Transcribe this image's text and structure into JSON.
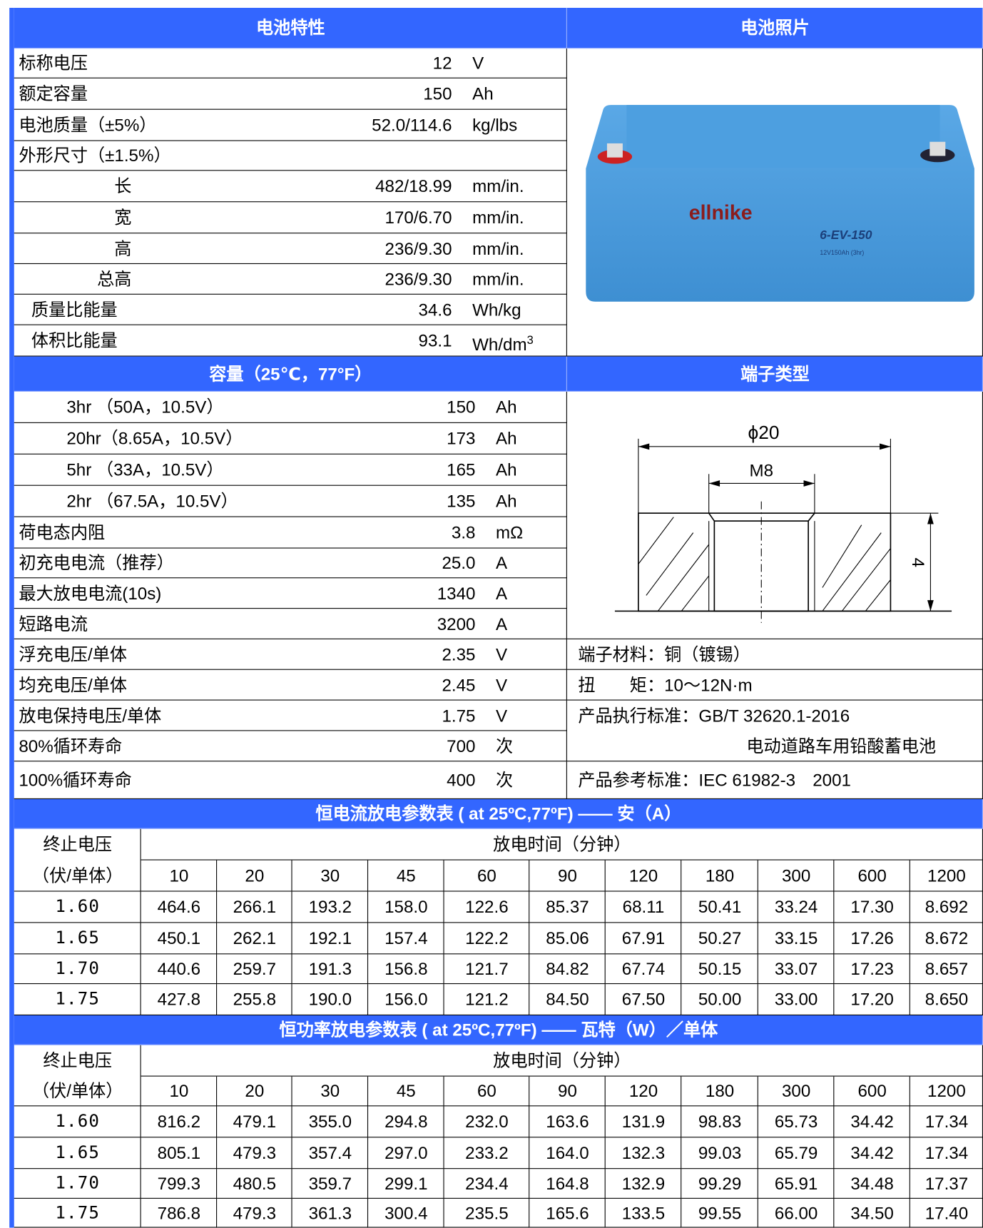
{
  "spec": {
    "title": "电池特性",
    "rows": [
      {
        "label": "标称电压",
        "value": "12",
        "unit": "V"
      },
      {
        "label": "额定容量",
        "value": "150",
        "unit": "Ah"
      },
      {
        "label": "电池质量（±5%）",
        "value": "52.0/114.6",
        "unit": "kg/lbs"
      },
      {
        "label": "外形尺寸（±1.5%）"
      },
      {
        "label": "长",
        "value": "482/18.99",
        "unit": "mm/in."
      },
      {
        "label": "宽",
        "value": "170/6.70",
        "unit": "mm/in."
      },
      {
        "label": "高",
        "value": "236/9.30",
        "unit": "mm/in."
      },
      {
        "label": "总高",
        "value": "236/9.30",
        "unit": "mm/in."
      },
      {
        "label": "质量比能量",
        "value": "34.6",
        "unit": "Wh/kg"
      },
      {
        "label": "体积比能量",
        "value": "93.1",
        "unit": "Wh/dm",
        "unit_sup": "3"
      }
    ]
  },
  "photo": {
    "title": "电池照片",
    "brand": "ellnike",
    "model": "6-EV-150",
    "rating": "12V150Ah (3hr)"
  },
  "capacity": {
    "title": "容量（25℃，77°F）",
    "rows": [
      {
        "label": "3hr （50A，10.5V）",
        "value": "150",
        "unit": "Ah"
      },
      {
        "label": "20hr（8.65A，10.5V）",
        "value": "173",
        "unit": "Ah"
      },
      {
        "label": "5hr （33A，10.5V）",
        "value": "165",
        "unit": "Ah"
      },
      {
        "label": "2hr （67.5A，10.5V）",
        "value": "135",
        "unit": "Ah"
      },
      {
        "label": "荷电态内阻",
        "value": "3.8",
        "unit": "mΩ"
      },
      {
        "label": "初充电电流（推荐）",
        "value": "25.0",
        "unit": "A"
      },
      {
        "label": "最大放电电流(10s)",
        "value": "1340",
        "unit": "A"
      },
      {
        "label": "短路电流",
        "value": "3200",
        "unit": "A"
      },
      {
        "label": "浮充电压/单体",
        "value": "2.35",
        "unit": "V"
      },
      {
        "label": "均充电压/单体",
        "value": "2.45",
        "unit": "V"
      },
      {
        "label": "放电保持电压/单体",
        "value": "1.75",
        "unit": "V"
      },
      {
        "label": "80%循环寿命",
        "value": "700",
        "unit": "次"
      },
      {
        "label": "100%循环寿命",
        "value": "400",
        "unit": "次"
      }
    ]
  },
  "terminal": {
    "title": "端子类型",
    "diagram": {
      "outer": "ϕ20",
      "thread": "M8",
      "height": "4"
    },
    "details": [
      "端子材料：铜（镀锡）",
      "扭　　矩：10～12N·m",
      "产品执行标准：GB/T 32620.1-2016",
      "电动道路车用铅酸蓄电池",
      "产品参考标准：IEC 61982-3　2001"
    ]
  },
  "current_table": {
    "title": "恒电流放电参数表 ( at 25ºC,77ºF) —— 安（A）",
    "end_voltage": [
      "终止电压",
      "（伏/单体）"
    ],
    "time_label": "放电时间（分钟）",
    "times": [
      10,
      20,
      30,
      45,
      60,
      90,
      120,
      180,
      300,
      600,
      1200
    ],
    "rows": [
      {
        "voltage": "1.60",
        "values": [
          "464.6",
          "266.1",
          "193.2",
          "158.0",
          "122.6",
          "85.37",
          "68.11",
          "50.41",
          "33.24",
          "17.30",
          "8.692"
        ]
      },
      {
        "voltage": "1.65",
        "values": [
          "450.1",
          "262.1",
          "192.1",
          "157.4",
          "122.2",
          "85.06",
          "67.91",
          "50.27",
          "33.15",
          "17.26",
          "8.672"
        ]
      },
      {
        "voltage": "1.70",
        "values": [
          "440.6",
          "259.7",
          "191.3",
          "156.8",
          "121.7",
          "84.82",
          "67.74",
          "50.15",
          "33.07",
          "17.23",
          "8.657"
        ]
      },
      {
        "voltage": "1.75",
        "values": [
          "427.8",
          "255.8",
          "190.0",
          "156.0",
          "121.2",
          "84.50",
          "67.50",
          "50.00",
          "33.00",
          "17.20",
          "8.650"
        ]
      }
    ]
  },
  "power_table": {
    "title": "恒功率放电参数表 ( at 25ºC,77ºF) —— 瓦特（W）／单体",
    "end_voltage": [
      "终止电压",
      "（伏/单体）"
    ],
    "time_label": "放电时间（分钟）",
    "times": [
      10,
      20,
      30,
      45,
      60,
      90,
      120,
      180,
      300,
      600,
      1200
    ],
    "rows": [
      {
        "voltage": "1.60",
        "values": [
          "816.2",
          "479.1",
          "355.0",
          "294.8",
          "232.0",
          "163.6",
          "131.9",
          "98.83",
          "65.73",
          "34.42",
          "17.34"
        ]
      },
      {
        "voltage": "1.65",
        "values": [
          "805.1",
          "479.3",
          "357.4",
          "297.0",
          "233.2",
          "164.0",
          "132.3",
          "99.03",
          "65.79",
          "34.42",
          "17.34"
        ]
      },
      {
        "voltage": "1.70",
        "values": [
          "799.3",
          "480.5",
          "359.7",
          "299.1",
          "234.4",
          "164.8",
          "132.9",
          "99.29",
          "65.91",
          "34.48",
          "17.37"
        ]
      },
      {
        "voltage": "1.75",
        "values": [
          "786.8",
          "479.3",
          "361.3",
          "300.4",
          "235.5",
          "165.6",
          "133.5",
          "99.55",
          "66.00",
          "34.50",
          "17.40"
        ]
      }
    ]
  }
}
